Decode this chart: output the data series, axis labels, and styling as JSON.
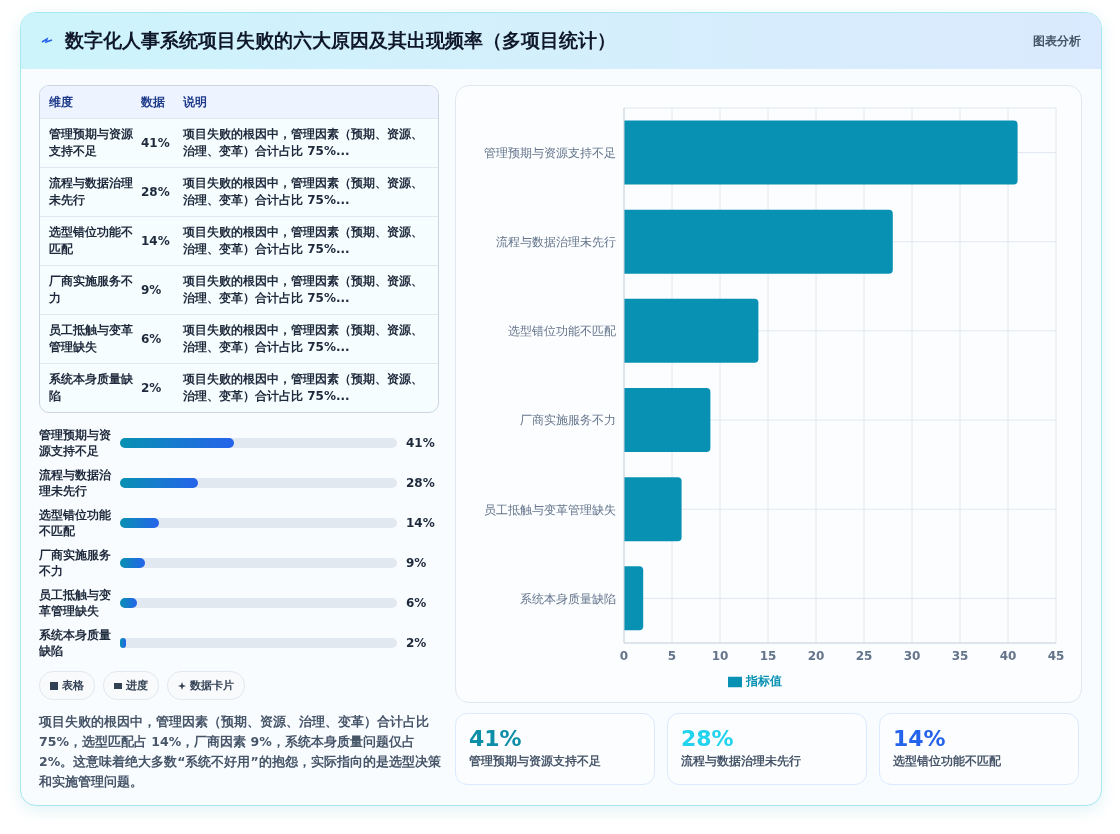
{
  "chart_data": {
    "type": "bar",
    "orientation": "horizontal",
    "title": "数字化人事系统项目失败的六大原因及其出现频率（多项目统计）",
    "categories": [
      "管理预期与资源支持不足",
      "流程与数据治理未先行",
      "选型错位功能不匹配",
      "厂商实施服务不力",
      "员工抵触与变革管理缺失",
      "系统本身质量缺陷"
    ],
    "series": [
      {
        "name": "指标值",
        "color": "#0891b2",
        "values": [
          41,
          28,
          14,
          9,
          6,
          2
        ]
      }
    ],
    "value_labels": [
      "41%",
      "28%",
      "14%",
      "9%",
      "6%",
      "2%"
    ],
    "xlim": [
      0,
      45
    ],
    "xticks": [
      0,
      5,
      10,
      15,
      20,
      25,
      30,
      35,
      40,
      45
    ],
    "grid": true,
    "legend": "bottom",
    "annotations": [
      "图表分析",
      "维度",
      "数据",
      "说明",
      "项目失败的根因中，管理因素（预期、资源、治理、变革）合计占比 75%...",
      "表格",
      "进度",
      "数据卡片",
      "项目失败的根因中，管理因素（预期、资源、治理、变革）合计占比 75%，选型匹配占 14%，厂商因素 9%，系统本身质量问题仅占 2%。这意味着绝大多数“系统不好用”的抱怨，实际指向的是选型决策和实施管理问题。"
    ]
  }
}
